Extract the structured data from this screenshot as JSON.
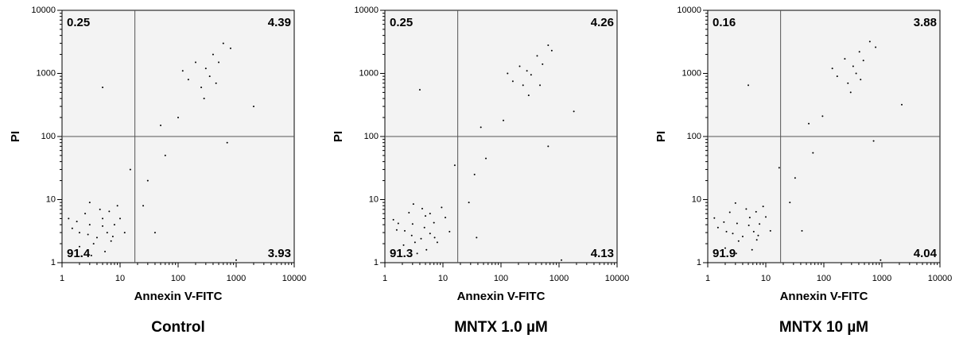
{
  "chart_data": [
    {
      "type": "scatter",
      "title": "Control",
      "x_label": "Annexin V-FITC",
      "y_label": "PI",
      "log_x": true,
      "log_y": true,
      "xlim": [
        1,
        10000
      ],
      "ylim": [
        1,
        10000
      ],
      "xticks": [
        1,
        10,
        100,
        1000,
        10000
      ],
      "yticks": [
        1,
        10,
        100,
        1000,
        10000
      ],
      "gate_x": 18,
      "gate_y": 100,
      "quadrants": {
        "upper_left": 0.25,
        "upper_right": 4.39,
        "lower_left": 91.4,
        "lower_right": 3.93
      },
      "series": [
        {
          "color": "#000000",
          "x": [
            2,
            3,
            4,
            5,
            2.5,
            6,
            3.5,
            8,
            1.5,
            4.5,
            7,
            2,
            10,
            3,
            5.5,
            1.3,
            12,
            6.5,
            9,
            2.8,
            1.8,
            3.2,
            5,
            7.5,
            150,
            300,
            400,
            250,
            500,
            200,
            600,
            350,
            120,
            800,
            450,
            280,
            30,
            60,
            100,
            25,
            50,
            15,
            40,
            1000,
            5,
            700,
            2000
          ],
          "y": [
            3,
            4,
            2.5,
            5,
            6,
            3,
            2,
            4,
            3.5,
            7,
            2.2,
            1.8,
            5,
            9,
            1.5,
            5,
            3,
            6.5,
            8,
            2.8,
            4.5,
            1.3,
            3.8,
            2.6,
            800,
            1200,
            2000,
            600,
            1500,
            1500,
            3000,
            900,
            1100,
            2500,
            700,
            400,
            20,
            50,
            200,
            8,
            150,
            30,
            3,
            1.1,
            600,
            80,
            300
          ]
        }
      ]
    },
    {
      "type": "scatter",
      "title": "MNTX 1.0 µM",
      "x_label": "Annexin V-FITC",
      "y_label": "PI",
      "log_x": true,
      "log_y": true,
      "xlim": [
        1,
        10000
      ],
      "ylim": [
        1,
        10000
      ],
      "xticks": [
        1,
        10,
        100,
        1000,
        10000
      ],
      "yticks": [
        1,
        10,
        100,
        1000,
        10000
      ],
      "gate_x": 18,
      "gate_y": 100,
      "quadrants": {
        "upper_left": 0.25,
        "upper_right": 4.26,
        "lower_left": 91.3,
        "lower_right": 4.13
      },
      "series": [
        {
          "color": "#000000",
          "x": [
            2.2,
            3,
            4.2,
            5,
            2.6,
            6,
            3.3,
            7,
            1.6,
            4.4,
            8,
            2.1,
            11,
            3.1,
            5.2,
            1.4,
            13,
            6,
            9.5,
            2.9,
            1.7,
            3.6,
            4.8,
            7.2,
            160,
            280,
            420,
            240,
            520,
            210,
            650,
            330,
            130,
            750,
            470,
            300,
            35,
            55,
            110,
            28,
            45,
            16,
            38,
            1100,
            4,
            650,
            1800
          ],
          "y": [
            3.2,
            4.1,
            2.4,
            5.5,
            6.2,
            2.9,
            2.1,
            4.3,
            3.3,
            7.2,
            2.1,
            1.9,
            5.2,
            8.5,
            1.6,
            4.8,
            3.1,
            6,
            7.5,
            2.7,
            4.2,
            1.4,
            3.6,
            2.5,
            750,
            1100,
            1900,
            650,
            1400,
            1300,
            2800,
            950,
            1000,
            2300,
            650,
            450,
            25,
            45,
            180,
            9,
            140,
            35,
            2.5,
            1.1,
            550,
            70,
            250
          ]
        }
      ]
    },
    {
      "type": "scatter",
      "title": "MNTX 10 µM",
      "x_label": "Annexin V-FITC",
      "y_label": "PI",
      "log_x": true,
      "log_y": true,
      "xlim": [
        1,
        10000
      ],
      "ylim": [
        1,
        10000
      ],
      "xticks": [
        1,
        10,
        100,
        1000,
        10000
      ],
      "yticks": [
        1,
        10,
        100,
        1000,
        10000
      ],
      "gate_x": 18,
      "gate_y": 100,
      "quadrants": {
        "upper_left": 0.16,
        "upper_right": 3.88,
        "lower_left": 91.9,
        "lower_right": 4.04
      },
      "series": [
        {
          "color": "#000000",
          "x": [
            2.1,
            3.2,
            4,
            5.3,
            2.4,
            6.2,
            3.4,
            7.8,
            1.5,
            4.6,
            7,
            2,
            10,
            3,
            5.8,
            1.3,
            12,
            6.8,
            9,
            2.7,
            1.9,
            3.1,
            5.1,
            7.4,
            170,
            320,
            410,
            260,
            480,
            230,
            620,
            360,
            140,
            780,
            430,
            290,
            32,
            65,
            95,
            26,
            55,
            17,
            42,
            950,
            5,
            720,
            2200
          ],
          "y": [
            3.1,
            4.2,
            2.6,
            5.2,
            6.3,
            3.1,
            2.2,
            4.1,
            3.6,
            7.1,
            2.3,
            1.7,
            5.3,
            8.8,
            1.6,
            5.1,
            3.2,
            6.4,
            7.8,
            2.9,
            4.4,
            1.4,
            3.9,
            2.7,
            900,
            1300,
            2200,
            700,
            1600,
            1700,
            3200,
            1000,
            1200,
            2600,
            800,
            500,
            22,
            55,
            210,
            9,
            160,
            32,
            3.2,
            1.1,
            650,
            85,
            320
          ]
        }
      ]
    }
  ]
}
